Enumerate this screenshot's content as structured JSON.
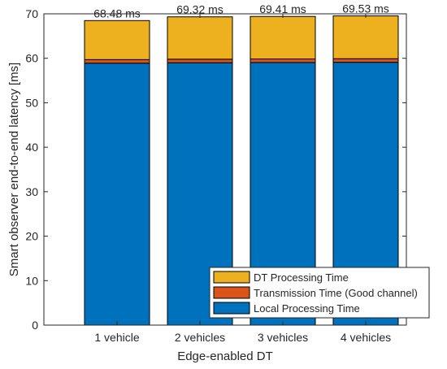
{
  "chart_data": {
    "type": "bar",
    "stacked": true,
    "title": "",
    "xlabel": "Edge-enabled DT",
    "ylabel": "Smart observer end-to-end latency [ms]",
    "ylim": [
      0,
      70
    ],
    "yticks": [
      0,
      10,
      20,
      30,
      40,
      50,
      60,
      70
    ],
    "grid": false,
    "legend_position": "bottom-right",
    "categories": [
      "1 vehicle",
      "2 vehicles",
      "3 vehicles",
      "4 vehicles"
    ],
    "series": [
      {
        "name": "Local Processing Time",
        "color": "#0072BD",
        "values": [
          58.9,
          59.0,
          59.05,
          59.1
        ]
      },
      {
        "name": "Transmission Time (Good channel)",
        "color": "#D95319",
        "values": [
          0.8,
          0.8,
          0.8,
          0.8
        ]
      },
      {
        "name": "DT Processing Time",
        "color": "#EDB120",
        "values": [
          8.78,
          9.52,
          9.56,
          9.63
        ]
      }
    ],
    "total_labels": [
      "68.48 ms",
      "69.32 ms",
      "69.41 ms",
      "69.53 ms"
    ],
    "totals": [
      68.48,
      69.32,
      69.41,
      69.53
    ]
  }
}
